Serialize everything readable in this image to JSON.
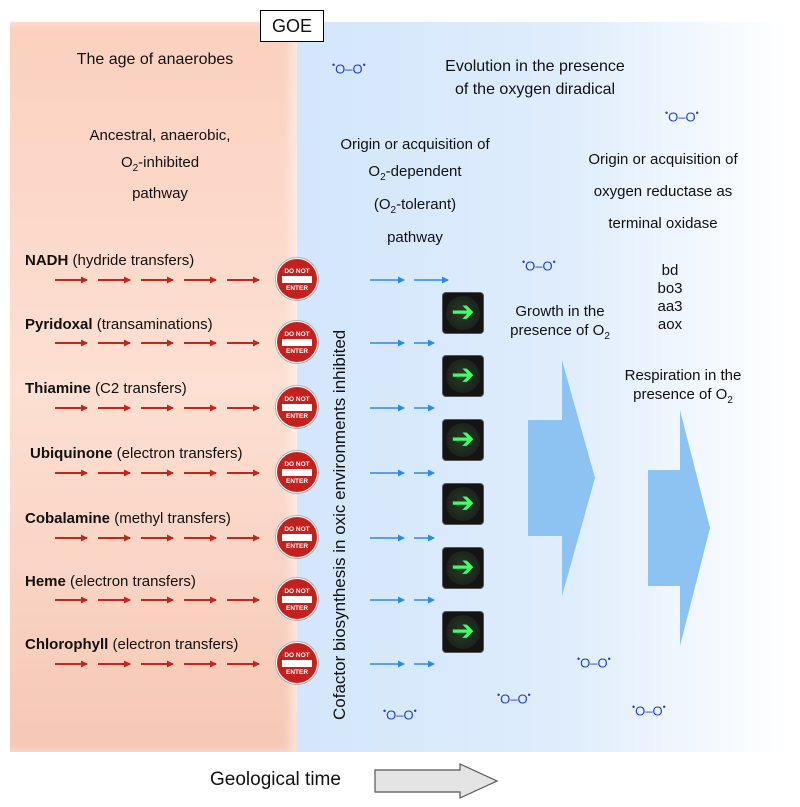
{
  "goe_label": "GOE",
  "left_panel": {
    "title": "The age of anaerobes",
    "desc_line1": "Ancestral, anaerobic,",
    "desc_o2": "O",
    "desc_o2_sub": "2",
    "desc_line2_rest": "-inhibited",
    "desc_line3": "pathway"
  },
  "right_panel": {
    "title_line1": "Evolution in the presence",
    "title_line2": "of the oxygen diradical",
    "origin1_line1": "Origin or acquisition of",
    "origin1_o": "O",
    "origin1_sub": "2",
    "origin1_line2_rest": "-dependent",
    "origin1_line3_open": "(O",
    "origin1_line3_sub": "2",
    "origin1_line3_rest": "-tolerant)",
    "origin1_line4": "pathway",
    "origin2_line1": "Origin or acquisition of",
    "origin2_line2": "oxygen reductase as",
    "origin2_line3": "terminal oxidase",
    "oxidases": [
      "bd",
      "bo3",
      "aa3",
      "aox"
    ],
    "growth_line1": "Growth in the",
    "growth_line2": "presence of O",
    "growth_sub": "2",
    "resp_line1": "Respiration in the",
    "resp_line2": "presence of O",
    "resp_sub": "2"
  },
  "oxygen_symbol": "O–O",
  "oxygen_dot": "•",
  "vertical_label": "Cofactor biosynthesis in oxic environments inhibited",
  "time_label": "Geological time",
  "cofactors": [
    {
      "name": "NADH",
      "role": "(hydride transfers)"
    },
    {
      "name": "Pyridoxal",
      "role": "(transaminations)"
    },
    {
      "name": "Thiamine",
      "role": "(C2 transfers)"
    },
    {
      "name": "Ubiquinone",
      "role": "(electron transfers)"
    },
    {
      "name": "Cobalamine",
      "role": "(methyl transfers)"
    },
    {
      "name": "Heme",
      "role": "(electron transfers)"
    },
    {
      "name": "Chlorophyll",
      "role": "(electron  transfers)"
    }
  ],
  "sign_text_top": "DO NOT",
  "sign_text_bottom": "ENTER",
  "light_arrow": "➔",
  "colors": {
    "anaerobe_zone": "#fbd0bf",
    "oxic_zone": "#d3e6fb",
    "red_arrow": "#c0281e",
    "blue_arrow": "#2a8ae6",
    "oxygen_text": "#1f3fd0",
    "big_arrow": "#8cc3f2",
    "green_arrow": "#3dff6a"
  }
}
